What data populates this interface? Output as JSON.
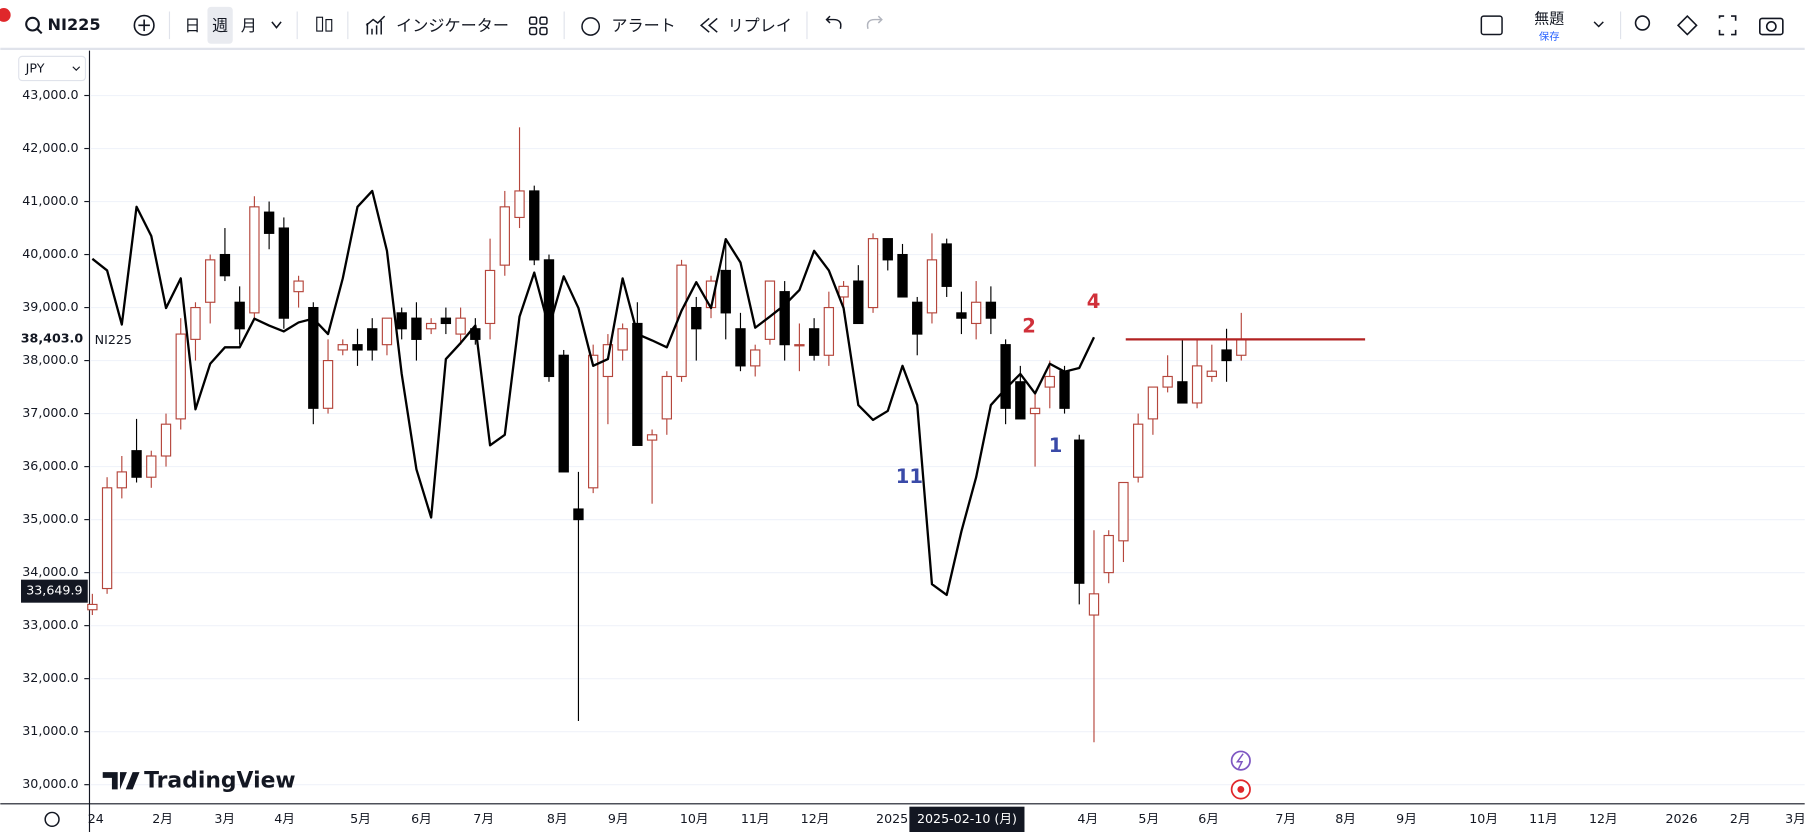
{
  "toolbar": {
    "symbol": "NI225",
    "intervals": [
      "日",
      "週",
      "月"
    ],
    "indicators": "インジケーター",
    "alert": "アラート",
    "replay": "リプレイ",
    "layout_name": "無題",
    "save": "保存"
  },
  "currency": "JPY",
  "logo": "TradingView",
  "chart_data": {
    "type": "candlestick",
    "legend": "NI225",
    "ylim": [
      29650,
      43890
    ],
    "yticks": [
      {
        "value": 30000,
        "label": "30,000.0"
      },
      {
        "value": 31000,
        "label": "31,000.0"
      },
      {
        "value": 32000,
        "label": "32,000.0"
      },
      {
        "value": 33000,
        "label": "33,000.0"
      },
      {
        "value": 34000,
        "label": "34,000.0"
      },
      {
        "value": 35000,
        "label": "35,000.0"
      },
      {
        "value": 36000,
        "label": "36,000.0"
      },
      {
        "value": 37000,
        "label": "37,000.0"
      },
      {
        "value": 38000,
        "label": "38,000.0"
      },
      {
        "value": 39000,
        "label": "39,000.0"
      },
      {
        "value": 40000,
        "label": "40,000.0"
      },
      {
        "value": 41000,
        "label": "41,000.0"
      },
      {
        "value": 42000,
        "label": "42,000.0"
      },
      {
        "value": 43000,
        "label": "43,000.0"
      }
    ],
    "grid": true,
    "xtick_labels": [
      "24",
      "2月",
      "3月",
      "4月",
      "5月",
      "6月",
      "7月",
      "8月",
      "9月",
      "10月",
      "11月",
      "12月",
      "2025",
      "4月",
      "5月",
      "6月",
      "7月",
      "8月",
      "9月",
      "10月",
      "11月",
      "12月",
      "2026",
      "2月",
      "3月"
    ],
    "crosshair": {
      "x_label": "2025-02-10 (月)",
      "y": {
        "value": 33649.9,
        "label": "33,649.9"
      }
    },
    "last_price": {
      "value": 38403,
      "label": "38,403.0"
    },
    "up_color": "#b5463c",
    "down_color": "#000000",
    "candles": {
      "open": [
        33300,
        33700,
        35600,
        36300,
        35800,
        36200,
        36900,
        38400,
        39100,
        40000,
        39100,
        38900,
        40800,
        40500,
        39300,
        39000,
        37100,
        38200,
        38300,
        38600,
        38300,
        38900,
        38800,
        38600,
        38800,
        38500,
        38600,
        38700,
        39800,
        40700,
        41200,
        39900,
        38100,
        35200,
        35600,
        37700,
        38200,
        38700,
        36500,
        36900,
        37700,
        39000,
        39000,
        39700,
        38600,
        37900,
        38400,
        39300,
        38300,
        38600,
        38100,
        39200,
        39500,
        39000,
        40300,
        40000,
        39100,
        38900,
        40200,
        38900,
        38700,
        39100,
        38300,
        37600,
        37000,
        37500,
        37800,
        36500,
        33200,
        34000,
        34600,
        35800,
        36900,
        37500,
        37600,
        37200,
        37700,
        38200,
        38100
      ],
      "high": [
        33600,
        35800,
        36200,
        36900,
        36300,
        37000,
        38800,
        39100,
        40000,
        40500,
        39400,
        41100,
        41000,
        40700,
        39600,
        39100,
        38400,
        38400,
        38600,
        38800,
        38800,
        39000,
        39100,
        38800,
        39000,
        39000,
        38800,
        40300,
        41200,
        42400,
        41300,
        40000,
        38200,
        35900,
        38300,
        38500,
        38700,
        39100,
        36700,
        37800,
        39900,
        39200,
        39600,
        40300,
        38900,
        38300,
        39500,
        39500,
        38700,
        38800,
        39300,
        39500,
        39800,
        40400,
        40300,
        40200,
        39200,
        40400,
        40300,
        39300,
        39500,
        39400,
        38400,
        37900,
        37400,
        38000,
        37900,
        36600,
        34800,
        34800,
        35700,
        37000,
        37500,
        38100,
        38400,
        38400,
        38300,
        38600,
        38900
      ],
      "low": [
        33200,
        33600,
        35400,
        35700,
        35600,
        36000,
        36700,
        38000,
        38700,
        39500,
        38300,
        38800,
        40100,
        38600,
        39000,
        36800,
        37000,
        38100,
        37900,
        38000,
        38100,
        38400,
        38000,
        38500,
        38500,
        38300,
        38300,
        38400,
        39600,
        40500,
        39800,
        37600,
        35900,
        31200,
        35500,
        36800,
        38000,
        36400,
        35300,
        36600,
        37600,
        38000,
        38800,
        38400,
        37800,
        37700,
        38300,
        38000,
        37800,
        38000,
        37900,
        38900,
        38800,
        38900,
        39700,
        39200,
        38100,
        38700,
        39200,
        38500,
        38400,
        38500,
        36800,
        36900,
        36000,
        37100,
        37000,
        33400,
        30800,
        33800,
        34200,
        35700,
        36600,
        37400,
        37200,
        37100,
        37600,
        37600,
        38000
      ],
      "close": [
        33400,
        35600,
        35900,
        35800,
        36200,
        36800,
        38500,
        39000,
        39900,
        39600,
        38600,
        40900,
        40400,
        38800,
        39500,
        37100,
        38000,
        38300,
        38200,
        38200,
        38800,
        38600,
        38400,
        38700,
        38700,
        38800,
        38400,
        39700,
        40900,
        41200,
        39900,
        37700,
        35900,
        35000,
        38100,
        38300,
        38600,
        36400,
        36600,
        37700,
        39800,
        38600,
        39500,
        38900,
        37900,
        38200,
        39500,
        38300,
        38300,
        38100,
        39000,
        39400,
        38700,
        40300,
        39900,
        39200,
        38500,
        39900,
        39400,
        38800,
        39100,
        38800,
        37100,
        36900,
        37100,
        37700,
        37100,
        33800,
        33600,
        34700,
        35700,
        36800,
        37500,
        37700,
        37200,
        37900,
        37800,
        38000,
        38403
      ]
    },
    "overlay": {
      "color": "#000000",
      "values": [
        39920,
        39700,
        38680,
        40900,
        40350,
        38990,
        39550,
        37080,
        37940,
        38250,
        38250,
        38790,
        38660,
        38550,
        38720,
        38790,
        38500,
        39550,
        40900,
        41200,
        40070,
        37750,
        35950,
        35040,
        38030,
        38330,
        38660,
        36400,
        36600,
        38830,
        39660,
        38620,
        39590,
        38990,
        37900,
        38030,
        39550,
        38500,
        38380,
        38250,
        38940,
        39480,
        38990,
        40290,
        39850,
        38620,
        38830,
        39050,
        39330,
        40070,
        39700,
        38990,
        37160,
        36880,
        37050,
        37900,
        37160,
        33780,
        33580,
        34780,
        35800,
        37160,
        37470,
        37750,
        37380,
        37940,
        37790,
        37860,
        38440,
        null,
        null,
        null,
        null,
        null,
        null,
        null,
        null,
        null,
        null,
        null
      ]
    },
    "hline": {
      "value": 38400,
      "color": "#b22222"
    },
    "annotations": [
      {
        "text": "2",
        "color": "#d0303a"
      },
      {
        "text": "4",
        "color": "#d0303a"
      },
      {
        "text": "11",
        "color": "#3a4aa8"
      },
      {
        "text": "1",
        "color": "#3a4aa8"
      }
    ]
  }
}
